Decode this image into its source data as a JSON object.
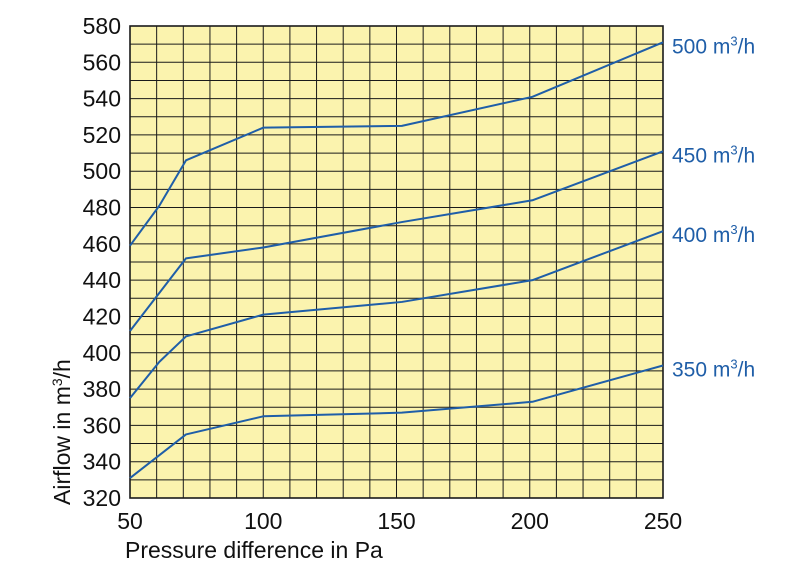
{
  "chart_data": {
    "type": "line",
    "xlabel": "Pressure difference in Pa",
    "ylabel_prefix": "Airflow in m",
    "ylabel_sup": "3",
    "ylabel_suffix": "/h",
    "xlim": [
      50,
      250
    ],
    "ylim": [
      320,
      580
    ],
    "x_ticks": [
      50,
      100,
      150,
      200,
      250
    ],
    "y_ticks": [
      320,
      340,
      360,
      380,
      400,
      420,
      440,
      460,
      480,
      500,
      520,
      540,
      560,
      580
    ],
    "x_minor_step": 10,
    "y_minor_step": 10,
    "grid": true,
    "background_color": "#fbf3ae",
    "grid_color": "#1a1a1a",
    "line_color": "#1f5ea8",
    "label_color": "#1f5ea8",
    "series": [
      {
        "name": "500 m³/h",
        "label_number": "500 m",
        "label_sup": "3",
        "label_suffix": "/h",
        "x": [
          50,
          61,
          71,
          100,
          152,
          201,
          250
        ],
        "y": [
          459,
          481,
          506,
          524,
          525,
          541,
          571
        ]
      },
      {
        "name": "450 m³/h",
        "label_number": "450 m",
        "label_sup": "3",
        "label_suffix": "/h",
        "x": [
          50,
          71,
          100,
          152,
          201,
          250
        ],
        "y": [
          412,
          452,
          458,
          472,
          484,
          511
        ]
      },
      {
        "name": "400 m³/h",
        "label_number": "400 m",
        "label_sup": "3",
        "label_suffix": "/h",
        "x": [
          50,
          61,
          71,
          100,
          152,
          201,
          250
        ],
        "y": [
          375,
          395,
          409,
          421,
          428,
          440,
          467
        ]
      },
      {
        "name": "350 m³/h",
        "label_number": "350 m",
        "label_sup": "3",
        "label_suffix": "/h",
        "x": [
          50,
          71,
          100,
          152,
          201,
          250
        ],
        "y": [
          331,
          355,
          365,
          367,
          373,
          393
        ]
      }
    ]
  }
}
